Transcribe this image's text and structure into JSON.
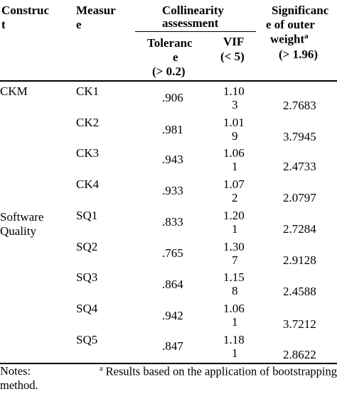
{
  "header": {
    "construct_line1": "Construc",
    "construct_line2": "t",
    "measure_line1": "Measur",
    "measure_line2": "e",
    "collinearity_line1": "Collinearity",
    "collinearity_line2": "assessment",
    "tolerance_line1": "Toleranc",
    "tolerance_line2": "e",
    "tolerance_line3": "(> 0.2)",
    "vif_line1": "VIF",
    "vif_line2": "(< 5)",
    "signif_line1": "Significanc",
    "signif_line2": "e of outer",
    "signif_line3": "weight",
    "signif_sup": "a",
    "signif_line4": "(> 1.96)"
  },
  "constructs": [
    {
      "line1": "CKM",
      "line2": ""
    },
    {
      "line1": "Software",
      "line2": "Quality"
    }
  ],
  "rows": [
    {
      "measure": "CK1",
      "tolerance": ".906",
      "vif_line1": "1.10",
      "vif_line2": "3",
      "significance": "2.7683"
    },
    {
      "measure": "CK2",
      "tolerance": ".981",
      "vif_line1": "1.01",
      "vif_line2": "9",
      "significance": "3.7945"
    },
    {
      "measure": "CK3",
      "tolerance": ".943",
      "vif_line1": "1.06",
      "vif_line2": "1",
      "significance": "2.4733"
    },
    {
      "measure": "CK4",
      "tolerance": ".933",
      "vif_line1": "1.07",
      "vif_line2": "2",
      "significance": "2.0797"
    },
    {
      "measure": "SQ1",
      "tolerance": ".833",
      "vif_line1": "1.20",
      "vif_line2": "1",
      "significance": "2.7284"
    },
    {
      "measure": "SQ2",
      "tolerance": ".765",
      "vif_line1": "1.30",
      "vif_line2": "7",
      "significance": "2.9128"
    },
    {
      "measure": "SQ3",
      "tolerance": ".864",
      "vif_line1": "1.15",
      "vif_line2": "8",
      "significance": "2.4588"
    },
    {
      "measure": "SQ4",
      "tolerance": ".942",
      "vif_line1": "1.06",
      "vif_line2": "1",
      "significance": "3.7212"
    },
    {
      "measure": "SQ5",
      "tolerance": ".847",
      "vif_line1": "1.18",
      "vif_line2": "1",
      "significance": "2.8622"
    }
  ],
  "notes": {
    "line1_prefix": "Notes:",
    "sup": "a",
    "line1_text": "Results based on the application of bootstrapping",
    "line2": "method."
  }
}
